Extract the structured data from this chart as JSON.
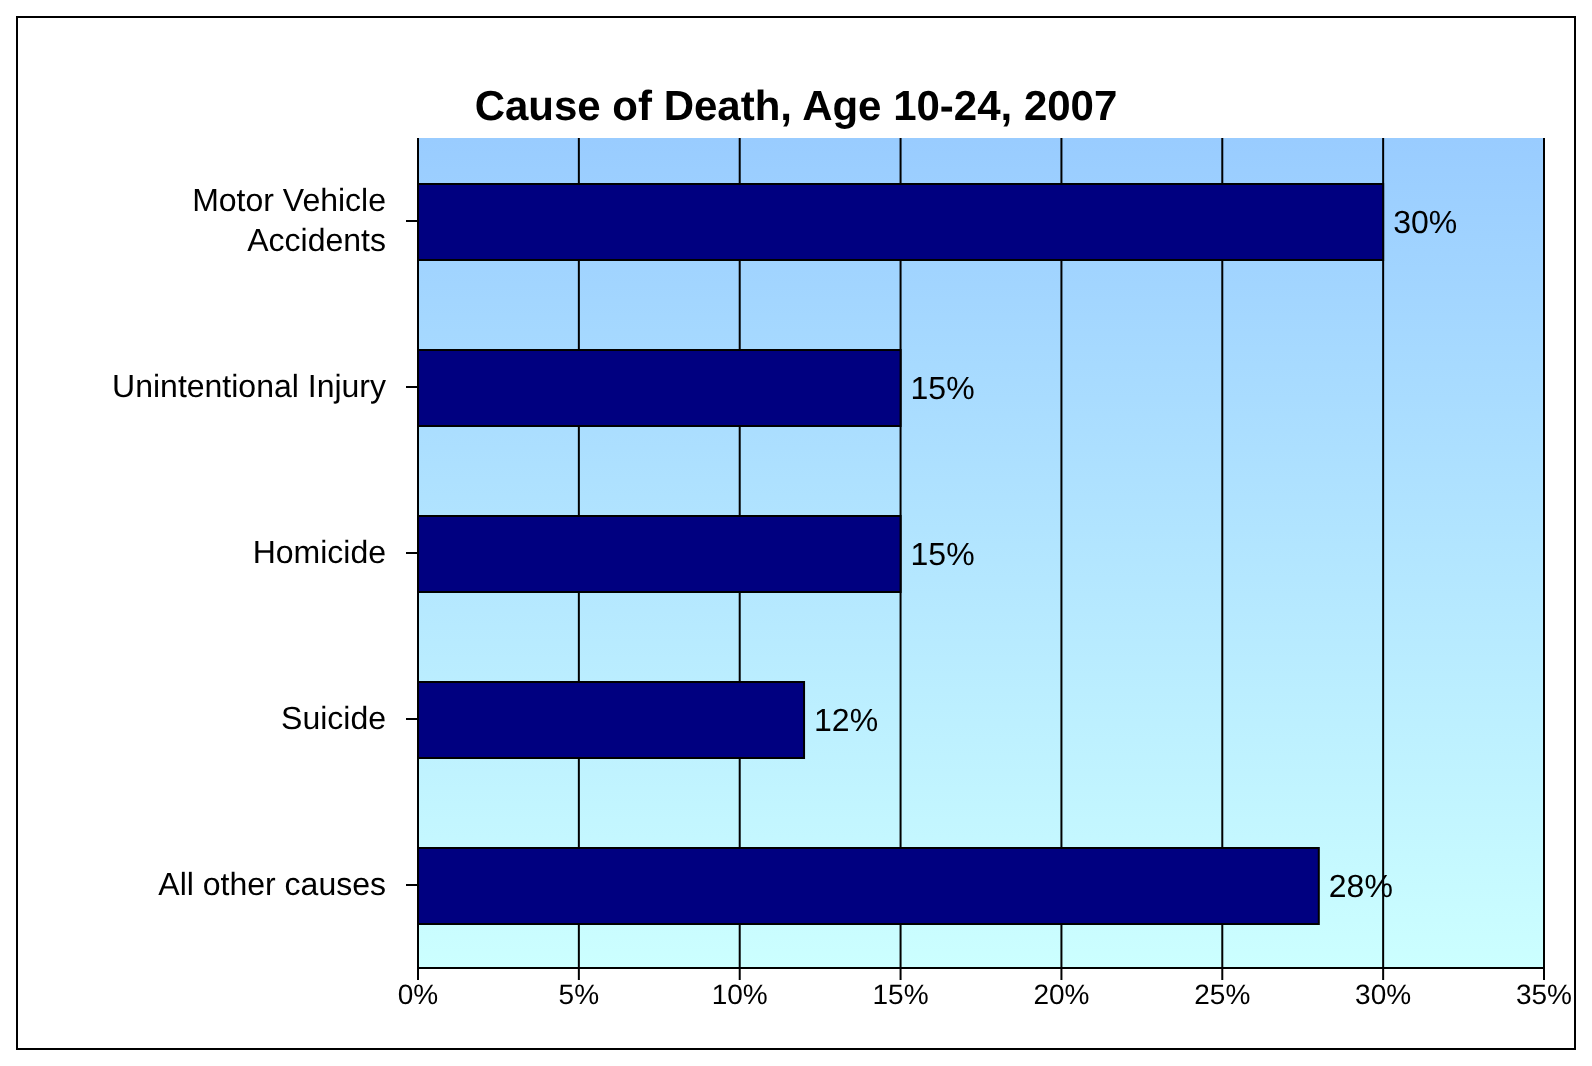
{
  "chart_data": {
    "type": "bar",
    "orientation": "horizontal",
    "title": "Cause of Death, Age 10-24, 2007",
    "categories": [
      "Motor Vehicle Accidents",
      "Unintentional Injury",
      "Homicide",
      "Suicide",
      "All other causes"
    ],
    "values": [
      30,
      15,
      15,
      12,
      28
    ],
    "value_labels": [
      "30%",
      "15%",
      "15%",
      "12%",
      "28%"
    ],
    "color": "#000080",
    "xlim": [
      0,
      35
    ],
    "xticks": [
      {
        "value": 0,
        "label": "0%"
      },
      {
        "value": 5,
        "label": "5%"
      },
      {
        "value": 10,
        "label": "10%"
      },
      {
        "value": 15,
        "label": "15%"
      },
      {
        "value": 20,
        "label": "20%"
      },
      {
        "value": 25,
        "label": "25%"
      },
      {
        "value": 30,
        "label": "30%"
      },
      {
        "value": 35,
        "label": "35%"
      }
    ],
    "grid": "x"
  }
}
